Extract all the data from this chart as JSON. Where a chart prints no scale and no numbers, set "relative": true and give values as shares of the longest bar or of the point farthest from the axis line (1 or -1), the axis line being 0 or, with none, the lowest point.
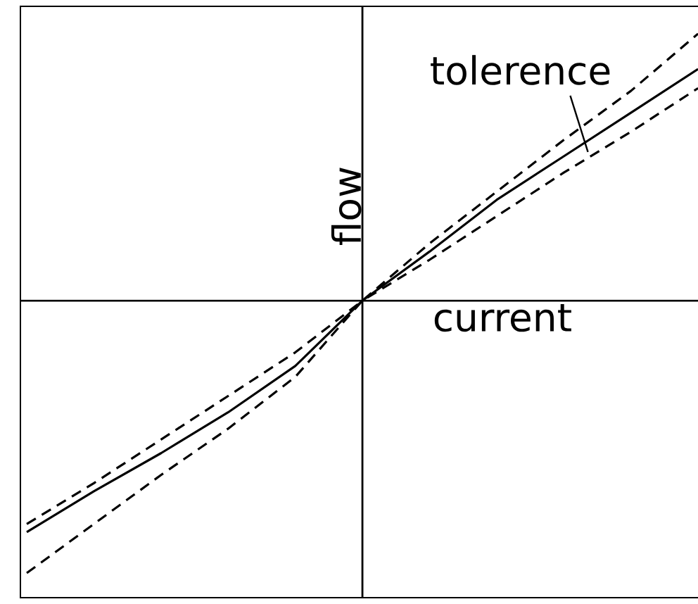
{
  "chart_data": {
    "type": "line",
    "relative": true,
    "xlabel": "current",
    "ylabel": "flow",
    "annotations": [
      "tolerence"
    ],
    "categories": [
      null,
      null,
      null,
      null,
      null,
      null,
      null,
      null,
      null,
      null,
      null
    ],
    "series": [
      {
        "color": "#000000",
        "line_style": "solid",
        "values": [
          -0.85,
          -0.7,
          -0.56,
          -0.41,
          -0.24,
          0,
          0.18,
          0.37,
          0.53,
          0.69,
          0.85
        ]
      },
      {
        "color": "#000000",
        "line_style": "dashed",
        "values": [
          -0.82,
          -0.67,
          -0.51,
          -0.35,
          -0.19,
          0,
          0.21,
          0.4,
          0.59,
          0.77,
          0.98
        ]
      },
      {
        "color": "#000000",
        "line_style": "dashed",
        "values": [
          -1.0,
          -0.82,
          -0.64,
          -0.47,
          -0.28,
          0,
          0.15,
          0.31,
          0.47,
          0.62,
          0.78
        ]
      }
    ]
  }
}
